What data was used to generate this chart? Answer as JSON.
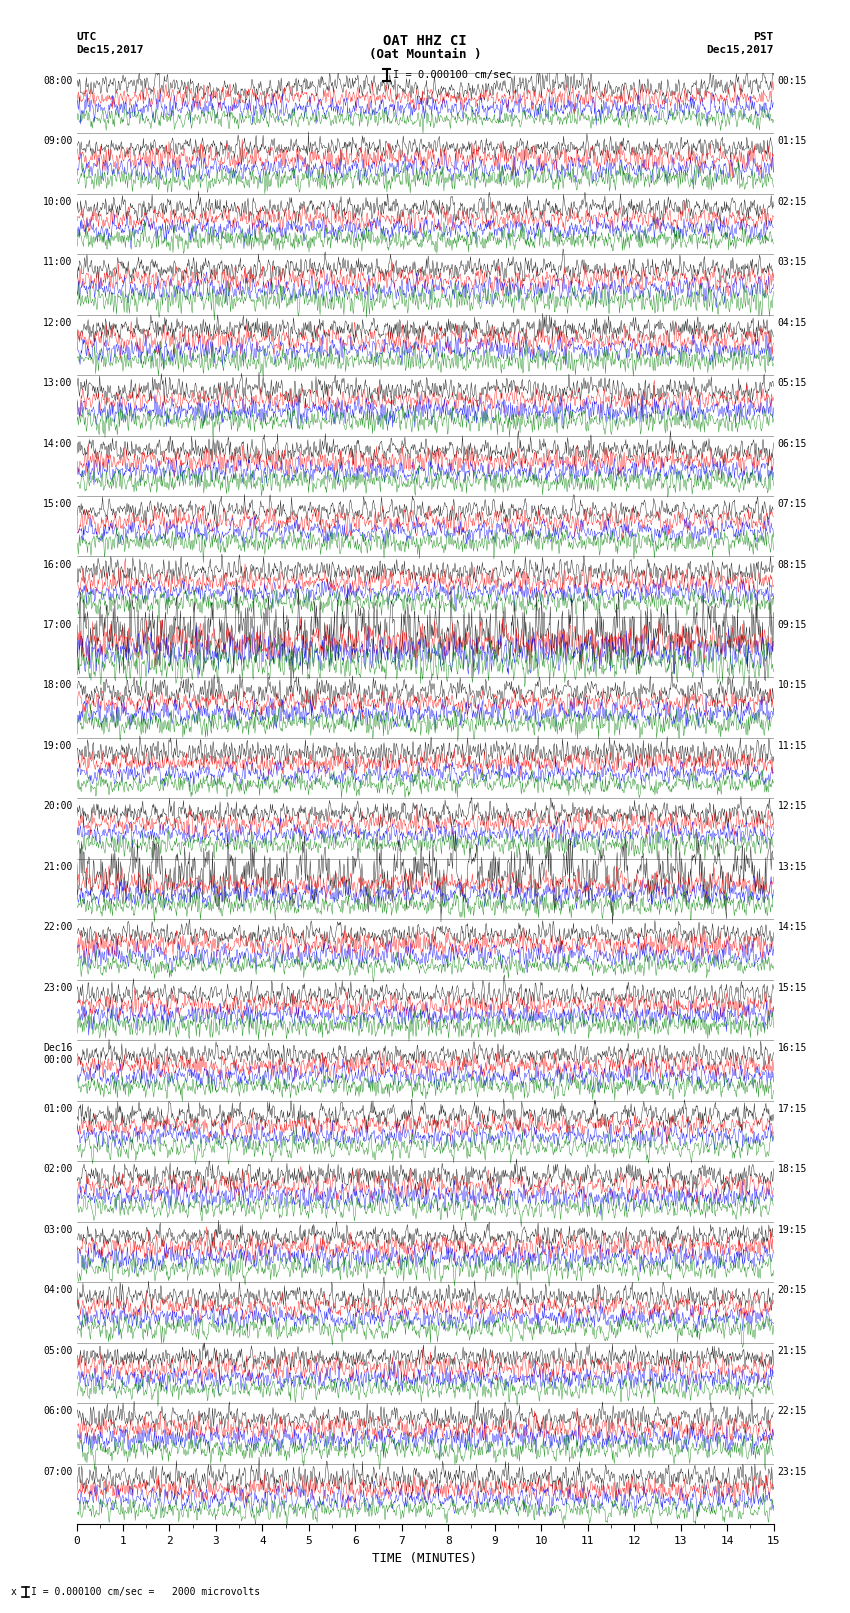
{
  "title_line1": "OAT HHZ CI",
  "title_line2": "(Oat Mountain )",
  "scale_label": "I = 0.000100 cm/sec",
  "footnote": "x I = 0.000100 cm/sec =   2000 microvolts",
  "utc_label": "UTC",
  "utc_date": "Dec15,2017",
  "pst_label": "PST",
  "pst_date": "Dec15,2017",
  "xlabel": "TIME (MINUTES)",
  "left_times": [
    "08:00",
    "09:00",
    "10:00",
    "11:00",
    "12:00",
    "13:00",
    "14:00",
    "15:00",
    "16:00",
    "17:00",
    "18:00",
    "19:00",
    "20:00",
    "21:00",
    "22:00",
    "23:00",
    "Dec16\n00:00",
    "01:00",
    "02:00",
    "03:00",
    "04:00",
    "05:00",
    "06:00",
    "07:00"
  ],
  "right_times": [
    "00:15",
    "01:15",
    "02:15",
    "03:15",
    "04:15",
    "05:15",
    "06:15",
    "07:15",
    "08:15",
    "09:15",
    "10:15",
    "11:15",
    "12:15",
    "13:15",
    "14:15",
    "15:15",
    "16:15",
    "17:15",
    "18:15",
    "19:15",
    "20:15",
    "21:15",
    "22:15",
    "23:15"
  ],
  "n_rows": 24,
  "n_traces_per_row": 4,
  "colors": [
    "black",
    "red",
    "blue",
    "green"
  ],
  "minutes_per_row": 15,
  "bg_color": "white",
  "fig_width": 8.5,
  "fig_height": 16.13,
  "dpi": 100,
  "amplitude_base": 0.35,
  "seed": 42,
  "special_rows": {
    "9": {
      "amps": [
        1.2,
        0.55,
        0.55,
        0.55
      ]
    },
    "13": {
      "amps": [
        0.9,
        0.35,
        0.35,
        0.35
      ]
    }
  }
}
